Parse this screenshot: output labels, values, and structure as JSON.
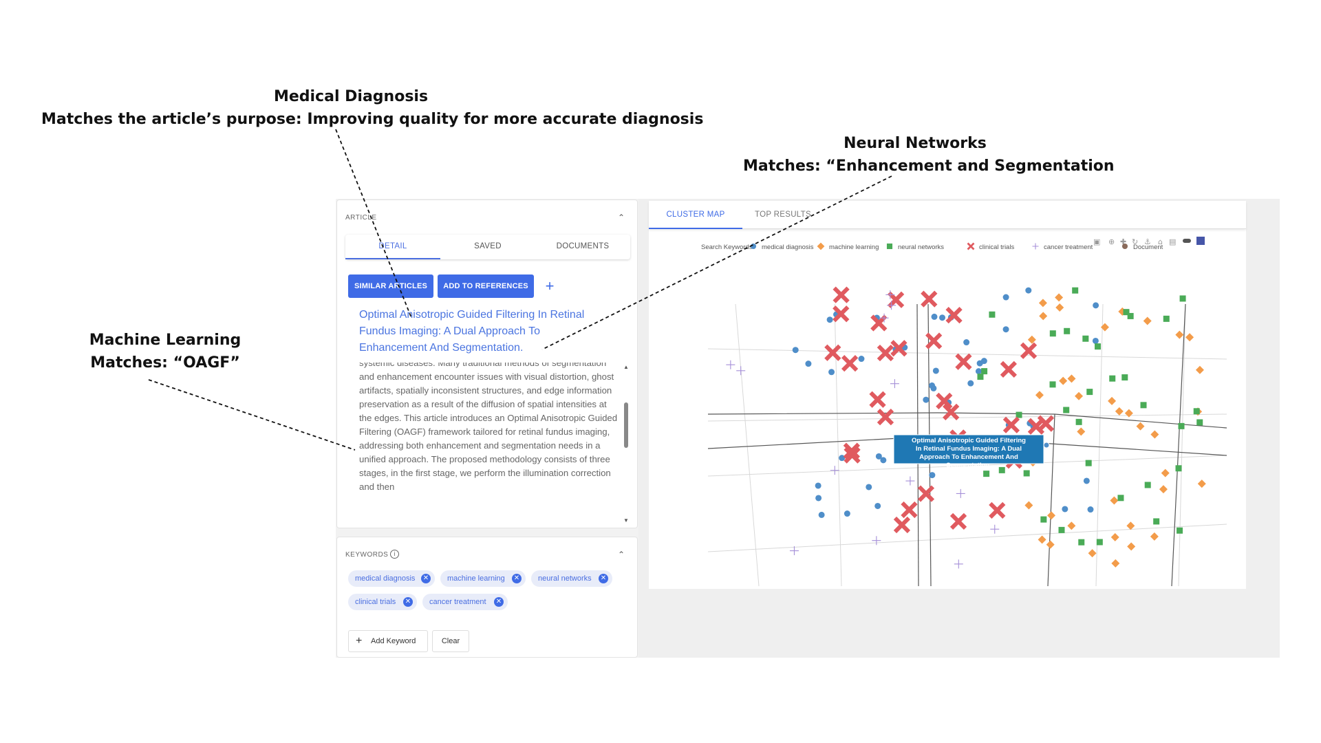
{
  "annotations": {
    "medical": {
      "title": "Medical Diagnosis",
      "text": "Matches the article’s purpose: Improving quality for more accurate diagnosis"
    },
    "neural": {
      "title": "Neural Networks",
      "text": "Matches: “Enhancement and Segmentation"
    },
    "ml": {
      "title": "Machine Learning",
      "text": "Matches: “OAGF”"
    }
  },
  "article_panel": {
    "title": "ARTICLE",
    "tabs": [
      {
        "label": "DETAIL"
      },
      {
        "label": "SAVED"
      },
      {
        "label": "DOCUMENTS"
      }
    ],
    "buttons": {
      "similar": "SIMILAR ARTICLES",
      "add_ref": "ADD TO REFERENCES",
      "plus": "+"
    },
    "article_title": "Optimal Anisotropic Guided Filtering In Retinal Fundus Imaging: A Dual Approach To Enhancement And Segmentation.",
    "abstract": "systemic diseases. Many traditional methods of segmentation and enhancement encounter issues with visual distortion, ghost artifacts, spatially inconsistent structures, and edge information preservation as a result of the diffusion of spatial intensities at the edges. This article introduces an Optimal Anisotropic Guided Filtering (OAGF) framework tailored for retinal fundus imaging, addressing both enhancement and segmentation needs in a unified approach. The proposed methodology consists of three stages, in the first stage, we perform the illumination correction and then"
  },
  "keywords_panel": {
    "title": "KEYWORDS",
    "chips": [
      {
        "label": "medical diagnosis"
      },
      {
        "label": "machine learning"
      },
      {
        "label": "neural networks"
      },
      {
        "label": "clinical trials"
      },
      {
        "label": "cancer treatment"
      }
    ],
    "add_label": "Add Keyword",
    "clear_label": "Clear"
  },
  "right_panel": {
    "tabs": [
      {
        "label": "CLUSTER MAP"
      },
      {
        "label": "TOP RESULTS"
      }
    ],
    "toolbar_icons": [
      "camera-icon",
      "zoom-icon",
      "pan-icon",
      "rotate-icon",
      "orbit-icon",
      "home-icon",
      "camera-reset-icon",
      "toggle-icon",
      "plotly-logo-icon"
    ]
  },
  "chart_data": {
    "type": "scatter",
    "legend_title": "Search Keywords",
    "legend_position": "top",
    "series": [
      {
        "name": "medical diagnosis",
        "marker": "circle",
        "color": "#4f8ec9"
      },
      {
        "name": "machine learning",
        "marker": "diamond",
        "color": "#f39c4a"
      },
      {
        "name": "neural networks",
        "marker": "square",
        "color": "#4aab57"
      },
      {
        "name": "clinical trials",
        "marker": "x",
        "color": "#e05a5f"
      },
      {
        "name": "cancer treatment",
        "marker": "cross",
        "color": "#a58fd8"
      },
      {
        "name": "Document",
        "marker": "circle",
        "color": "#8a6b5b"
      }
    ],
    "highlight_label": "Optimal Anisotropic Guided Filtering In Retinal Fundus Imaging: A Dual Approach To Enhancement And Segmentation."
  }
}
